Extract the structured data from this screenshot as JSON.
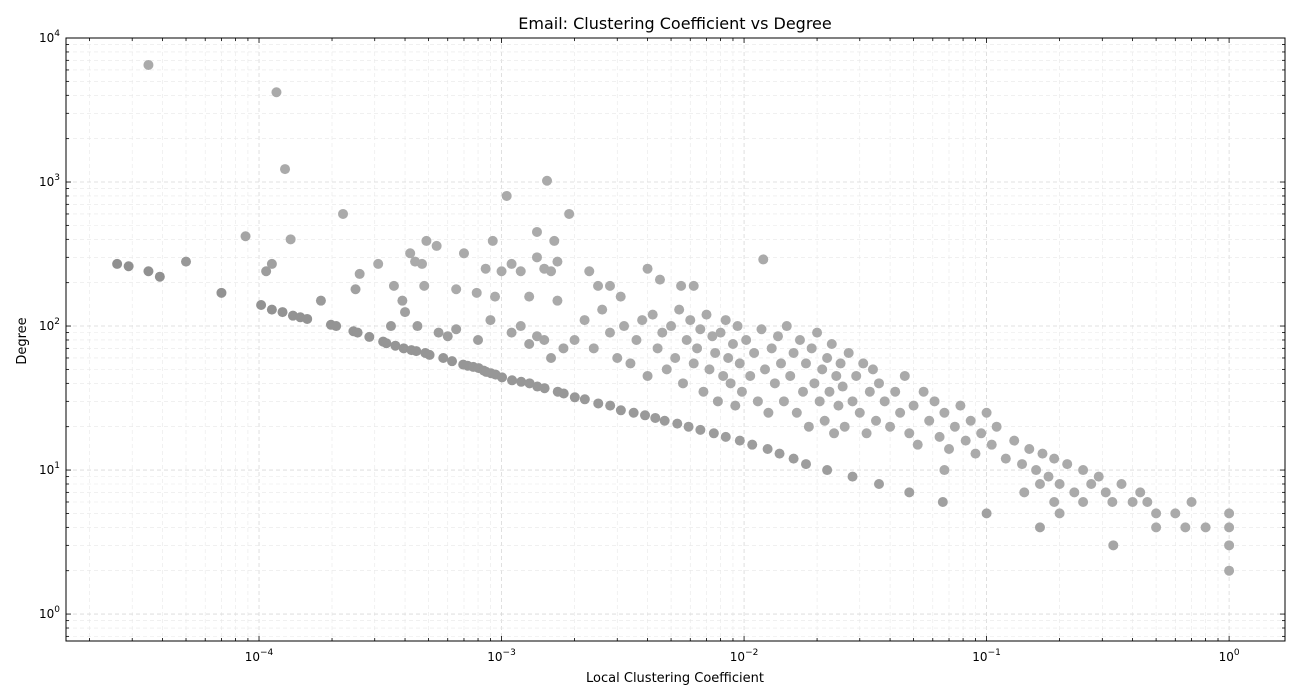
{
  "chart_data": {
    "type": "scatter",
    "title": "Email: Clustering Coefficient vs Degree",
    "xlabel": "Local Clustering Coefficient",
    "ylabel": "Degree",
    "xscale": "log",
    "yscale": "log",
    "xlim": [
      1.6e-05,
      1.7
    ],
    "ylim": [
      0.65,
      10000
    ],
    "grid": true,
    "point_color_range": [
      "#aaaaaa",
      "#666666"
    ],
    "x_ticks": [
      {
        "value": 0.0001,
        "base": "10",
        "exp": "−4"
      },
      {
        "value": 0.001,
        "base": "10",
        "exp": "−3"
      },
      {
        "value": 0.01,
        "base": "10",
        "exp": "−2"
      },
      {
        "value": 0.1,
        "base": "10",
        "exp": "−1"
      },
      {
        "value": 1,
        "base": "10",
        "exp": "0"
      }
    ],
    "y_ticks": [
      {
        "value": 1,
        "base": "10",
        "exp": "0"
      },
      {
        "value": 10,
        "base": "10",
        "exp": "1"
      },
      {
        "value": 100,
        "base": "10",
        "exp": "2"
      },
      {
        "value": 1000,
        "base": "10",
        "exp": "3"
      },
      {
        "value": 10000,
        "base": "10",
        "exp": "4"
      }
    ],
    "points": [
      [
        3.5e-05,
        6500
      ],
      [
        0.000118,
        4200
      ],
      [
        0.000128,
        1230
      ],
      [
        0.00154,
        1020
      ],
      [
        0.00105,
        800
      ],
      [
        0.000222,
        600
      ],
      [
        0.0019,
        600
      ],
      [
        8.8e-05,
        420
      ],
      [
        0.000135,
        400
      ],
      [
        0.00049,
        390
      ],
      [
        0.00092,
        390
      ],
      [
        0.0014,
        450
      ],
      [
        0.00165,
        390
      ],
      [
        0.012,
        290
      ],
      [
        2.6e-05,
        270
      ],
      [
        2.9e-05,
        260
      ],
      [
        3.5e-05,
        240
      ],
      [
        3.9e-05,
        220
      ],
      [
        5e-05,
        280
      ],
      [
        0.000107,
        240
      ],
      [
        0.000113,
        270
      ],
      [
        7e-05,
        170
      ],
      [
        0.00026,
        230
      ],
      [
        0.00031,
        270
      ],
      [
        0.00042,
        320
      ],
      [
        0.00044,
        280
      ],
      [
        0.00047,
        270
      ],
      [
        0.00054,
        360
      ],
      [
        0.0007,
        320
      ],
      [
        0.00086,
        250
      ],
      [
        0.001,
        240
      ],
      [
        0.0011,
        270
      ],
      [
        0.0012,
        240
      ],
      [
        0.0014,
        300
      ],
      [
        0.0015,
        250
      ],
      [
        0.0016,
        240
      ],
      [
        0.0017,
        280
      ],
      [
        0.0023,
        240
      ],
      [
        0.0025,
        190
      ],
      [
        0.0028,
        190
      ],
      [
        0.0031,
        160
      ],
      [
        0.004,
        250
      ],
      [
        0.0045,
        210
      ],
      [
        0.0055,
        190
      ],
      [
        0.0062,
        190
      ],
      [
        0.00025,
        180
      ],
      [
        0.00036,
        190
      ],
      [
        0.00039,
        150
      ],
      [
        0.00048,
        190
      ],
      [
        0.00065,
        180
      ],
      [
        0.00079,
        170
      ],
      [
        0.00094,
        160
      ],
      [
        0.0013,
        160
      ],
      [
        0.0017,
        150
      ],
      [
        0.00018,
        150
      ],
      [
        0.000102,
        140
      ],
      [
        0.000113,
        130
      ],
      [
        0.000125,
        125
      ],
      [
        0.000138,
        118
      ],
      [
        0.000148,
        115
      ],
      [
        0.000158,
        112
      ],
      [
        0.000198,
        102
      ],
      [
        0.000208,
        100
      ],
      [
        0.000245,
        92
      ],
      [
        0.000255,
        90
      ],
      [
        0.000285,
        84
      ],
      [
        0.000325,
        78
      ],
      [
        0.000335,
        76
      ],
      [
        0.000365,
        73
      ],
      [
        0.000395,
        70
      ],
      [
        0.000425,
        68
      ],
      [
        0.000445,
        67
      ],
      [
        0.000485,
        65
      ],
      [
        0.000505,
        63
      ],
      [
        0.000575,
        60
      ],
      [
        0.000625,
        57
      ],
      [
        0.000695,
        54
      ],
      [
        0.000725,
        53
      ],
      [
        0.000765,
        52
      ],
      [
        0.000805,
        51
      ],
      [
        0.000845,
        49
      ],
      [
        0.000865,
        48
      ],
      [
        0.000905,
        47
      ],
      [
        0.000945,
        46
      ],
      [
        0.001005,
        44
      ],
      [
        0.001105,
        42
      ],
      [
        0.001205,
        41
      ],
      [
        0.001305,
        40
      ],
      [
        0.001405,
        38
      ],
      [
        0.001505,
        37
      ],
      [
        0.001705,
        35
      ],
      [
        0.001805,
        34
      ],
      [
        0.002005,
        32
      ],
      [
        0.002205,
        31
      ],
      [
        0.002505,
        29
      ],
      [
        0.002805,
        28
      ],
      [
        0.003105,
        26
      ],
      [
        0.003505,
        25
      ],
      [
        0.003905,
        24
      ],
      [
        0.004305,
        23
      ],
      [
        0.004705,
        22
      ],
      [
        0.005305,
        21
      ],
      [
        0.005905,
        20
      ],
      [
        0.006605,
        19
      ],
      [
        0.007505,
        18
      ],
      [
        0.008405,
        17
      ],
      [
        0.009605,
        16
      ],
      [
        0.010805,
        15
      ],
      [
        0.012505,
        14
      ],
      [
        0.014005,
        13
      ],
      [
        0.016005,
        12
      ],
      [
        0.018005,
        11
      ],
      [
        0.022005,
        10
      ],
      [
        0.028005,
        9
      ],
      [
        0.036005,
        8
      ],
      [
        0.048005,
        7
      ],
      [
        0.066005,
        6
      ],
      [
        0.100005,
        5
      ],
      [
        0.166,
        4
      ],
      [
        0.333,
        3
      ],
      [
        1,
        2
      ],
      [
        0.00035,
        100
      ],
      [
        0.0004,
        125
      ],
      [
        0.00045,
        100
      ],
      [
        0.00055,
        90
      ],
      [
        0.0006,
        85
      ],
      [
        0.00065,
        95
      ],
      [
        0.0008,
        80
      ],
      [
        0.0009,
        110
      ],
      [
        0.0011,
        90
      ],
      [
        0.0012,
        100
      ],
      [
        0.0013,
        75
      ],
      [
        0.0014,
        85
      ],
      [
        0.0015,
        80
      ],
      [
        0.0016,
        60
      ],
      [
        0.0018,
        70
      ],
      [
        0.002,
        80
      ],
      [
        0.0022,
        110
      ],
      [
        0.0024,
        70
      ],
      [
        0.0026,
        130
      ],
      [
        0.0028,
        90
      ],
      [
        0.003,
        60
      ],
      [
        0.0032,
        100
      ],
      [
        0.0034,
        55
      ],
      [
        0.0036,
        80
      ],
      [
        0.0038,
        110
      ],
      [
        0.004,
        45
      ],
      [
        0.0042,
        120
      ],
      [
        0.0044,
        70
      ],
      [
        0.0046,
        90
      ],
      [
        0.0048,
        50
      ],
      [
        0.005,
        100
      ],
      [
        0.0052,
        60
      ],
      [
        0.0054,
        130
      ],
      [
        0.0056,
        40
      ],
      [
        0.0058,
        80
      ],
      [
        0.006,
        110
      ],
      [
        0.0062,
        55
      ],
      [
        0.0064,
        70
      ],
      [
        0.0066,
        95
      ],
      [
        0.0068,
        35
      ],
      [
        0.007,
        120
      ],
      [
        0.0072,
        50
      ],
      [
        0.0074,
        85
      ],
      [
        0.0076,
        65
      ],
      [
        0.0078,
        30
      ],
      [
        0.008,
        90
      ],
      [
        0.0082,
        45
      ],
      [
        0.0084,
        110
      ],
      [
        0.0086,
        60
      ],
      [
        0.0088,
        40
      ],
      [
        0.009,
        75
      ],
      [
        0.0092,
        28
      ],
      [
        0.0094,
        100
      ],
      [
        0.0096,
        55
      ],
      [
        0.0098,
        35
      ],
      [
        0.0102,
        80
      ],
      [
        0.0106,
        45
      ],
      [
        0.011,
        65
      ],
      [
        0.0114,
        30
      ],
      [
        0.0118,
        95
      ],
      [
        0.0122,
        50
      ],
      [
        0.0126,
        25
      ],
      [
        0.013,
        70
      ],
      [
        0.0134,
        40
      ],
      [
        0.0138,
        85
      ],
      [
        0.0142,
        55
      ],
      [
        0.0146,
        30
      ],
      [
        0.015,
        100
      ],
      [
        0.0155,
        45
      ],
      [
        0.016,
        65
      ],
      [
        0.0165,
        25
      ],
      [
        0.017,
        80
      ],
      [
        0.0175,
        35
      ],
      [
        0.018,
        55
      ],
      [
        0.0185,
        20
      ],
      [
        0.019,
        70
      ],
      [
        0.0195,
        40
      ],
      [
        0.02,
        90
      ],
      [
        0.0205,
        30
      ],
      [
        0.021,
        50
      ],
      [
        0.0215,
        22
      ],
      [
        0.022,
        60
      ],
      [
        0.0225,
        35
      ],
      [
        0.023,
        75
      ],
      [
        0.0235,
        18
      ],
      [
        0.024,
        45
      ],
      [
        0.0245,
        28
      ],
      [
        0.025,
        55
      ],
      [
        0.0255,
        38
      ],
      [
        0.026,
        20
      ],
      [
        0.027,
        65
      ],
      [
        0.028,
        30
      ],
      [
        0.029,
        45
      ],
      [
        0.03,
        25
      ],
      [
        0.031,
        55
      ],
      [
        0.032,
        18
      ],
      [
        0.033,
        35
      ],
      [
        0.034,
        50
      ],
      [
        0.035,
        22
      ],
      [
        0.036,
        40
      ],
      [
        0.038,
        30
      ],
      [
        0.04,
        20
      ],
      [
        0.042,
        35
      ],
      [
        0.044,
        25
      ],
      [
        0.046,
        45
      ],
      [
        0.048,
        18
      ],
      [
        0.05,
        28
      ],
      [
        0.052,
        15
      ],
      [
        0.055,
        35
      ],
      [
        0.058,
        22
      ],
      [
        0.061,
        30
      ],
      [
        0.064,
        17
      ],
      [
        0.067,
        25
      ],
      [
        0.07,
        14
      ],
      [
        0.074,
        20
      ],
      [
        0.078,
        28
      ],
      [
        0.082,
        16
      ],
      [
        0.086,
        22
      ],
      [
        0.09,
        13
      ],
      [
        0.095,
        18
      ],
      [
        0.1,
        25
      ],
      [
        0.105,
        15
      ],
      [
        0.11,
        20
      ],
      [
        0.12,
        12
      ],
      [
        0.13,
        16
      ],
      [
        0.14,
        11
      ],
      [
        0.15,
        14
      ],
      [
        0.16,
        10
      ],
      [
        0.17,
        13
      ],
      [
        0.18,
        9
      ],
      [
        0.19,
        12
      ],
      [
        0.2,
        8
      ],
      [
        0.215,
        11
      ],
      [
        0.23,
        7
      ],
      [
        0.25,
        10
      ],
      [
        0.27,
        8
      ],
      [
        0.29,
        9
      ],
      [
        0.31,
        7
      ],
      [
        0.33,
        6
      ],
      [
        0.36,
        8
      ],
      [
        0.4,
        6
      ],
      [
        0.43,
        7
      ],
      [
        0.46,
        6
      ],
      [
        0.5,
        5
      ],
      [
        0.6,
        5
      ],
      [
        0.66,
        4
      ],
      [
        0.7,
        6
      ],
      [
        0.8,
        4
      ],
      [
        1,
        5
      ],
      [
        1,
        4
      ],
      [
        1,
        3
      ],
      [
        0.5,
        4
      ],
      [
        0.25,
        6
      ],
      [
        0.2,
        5
      ],
      [
        0.143,
        7
      ],
      [
        0.166,
        8
      ],
      [
        0.19,
        6
      ],
      [
        0.067,
        10
      ]
    ]
  }
}
